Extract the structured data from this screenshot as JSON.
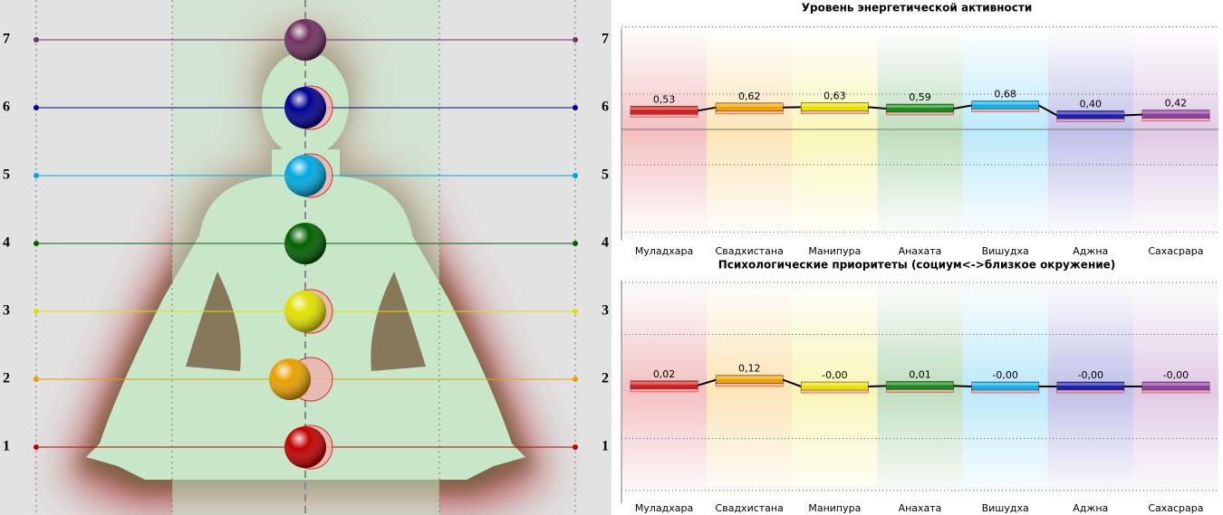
{
  "levels": {
    "labels": [
      1,
      2,
      3,
      4,
      5,
      6,
      7
    ],
    "colors": [
      "#c00000",
      "#e8a000",
      "#e0e000",
      "#006000",
      "#00a8e0",
      "#000090",
      "#703060"
    ]
  },
  "chart_data": [
    {
      "type": "bar",
      "title": "Уровень энергетической активности",
      "categories": [
        "Муладхара",
        "Свадхистана",
        "Манипура",
        "Анахата",
        "Вишудха",
        "Аджна",
        "Сахасрара"
      ],
      "values": [
        0.53,
        0.62,
        0.63,
        0.59,
        0.68,
        0.4,
        0.42
      ],
      "value_labels": [
        "0,53",
        "0,62",
        "0,63",
        "0,59",
        "0,68",
        "0,40",
        "0,42"
      ],
      "colors": [
        "#d42020",
        "#f0a000",
        "#e8e000",
        "#1a8a1a",
        "#10b0e8",
        "#2020b0",
        "#9040a0"
      ],
      "ylim": [
        -3.1,
        3.1
      ],
      "grid_lines": [
        -2.9,
        -1,
        1,
        2.9
      ]
    },
    {
      "type": "bar",
      "title": "Психологические приоритеты (социум<->близкое окружение)",
      "categories": [
        "Муладхара",
        "Свадхистана",
        "Манипура",
        "Анахата",
        "Вишудха",
        "Аджна",
        "Сахасрара"
      ],
      "values": [
        0.02,
        0.12,
        0,
        0.01,
        0,
        0,
        0
      ],
      "value_labels": [
        "0,02",
        "0,12",
        "-0,00",
        "0,01",
        "-0,00",
        "-0,00",
        "-0,00"
      ],
      "colors": [
        "#d42020",
        "#f0a000",
        "#e8e000",
        "#1a8a1a",
        "#10b0e8",
        "#2020b0",
        "#9040a0"
      ],
      "ylim": [
        -2.1,
        2.1
      ],
      "grid_lines": [
        -1.9,
        -0.95,
        0.95,
        1.9
      ]
    }
  ]
}
